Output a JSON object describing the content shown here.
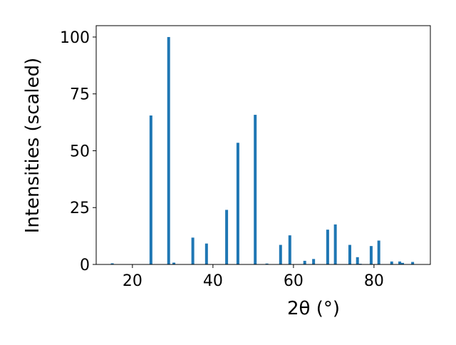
{
  "chart_data": {
    "type": "bar",
    "xlabel": "2θ (°)",
    "ylabel": "Intensities (scaled)",
    "color": "#1f77b4",
    "x": [
      15.0,
      24.6,
      29.0,
      30.3,
      35.0,
      38.4,
      43.4,
      46.2,
      50.5,
      53.4,
      56.8,
      59.1,
      62.8,
      65.0,
      68.5,
      70.4,
      74.0,
      75.9,
      76.6,
      79.3,
      81.2,
      84.4,
      86.4,
      87.1,
      89.6
    ],
    "values": [
      0.5,
      65.5,
      100,
      0.8,
      11.8,
      9.2,
      24,
      53.5,
      65.8,
      0.4,
      8.6,
      12.8,
      1.6,
      2.4,
      15.3,
      17.6,
      8.6,
      3.2,
      0.3,
      8.1,
      10.5,
      1.3,
      1.3,
      0.7,
      1.1
    ],
    "xlim": [
      11,
      94
    ],
    "ylim": [
      0,
      105
    ],
    "xticks": [
      20,
      40,
      60,
      80
    ],
    "yticks": [
      0,
      25,
      50,
      75,
      100
    ]
  }
}
